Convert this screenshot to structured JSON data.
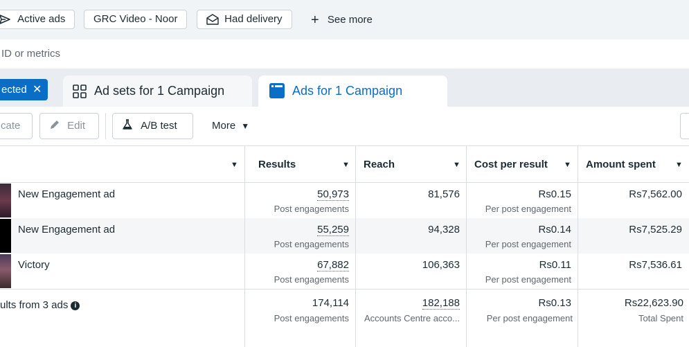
{
  "filters": {
    "chips": [
      {
        "label": "Active ads",
        "icon": "send-icon"
      },
      {
        "label": "GRC Video - Noor",
        "icon": ""
      },
      {
        "label": "Had delivery",
        "icon": "envelope-icon"
      }
    ],
    "see_more": "See more"
  },
  "search": {
    "placeholder": "ID or metrics"
  },
  "tabs": {
    "selected_chip": "ected",
    "ad_sets": "Ad sets for 1 Campaign",
    "ads": "Ads for 1 Campaign"
  },
  "toolbar": {
    "duplicate": "cate",
    "edit": "Edit",
    "ab_test": "A/B test",
    "more": "More"
  },
  "table": {
    "headers": {
      "results": "Results",
      "reach": "Reach",
      "cost_per_result": "Cost per result",
      "amount_spent": "Amount spent"
    },
    "rows": [
      {
        "name": "New Engagement ad",
        "results": "50,973",
        "results_sub": "Post engagements",
        "reach": "81,576",
        "cost": "Rs0.15",
        "cost_sub": "Per post engagement",
        "spent": "Rs7,562.00"
      },
      {
        "name": "New Engagement ad",
        "results": "55,259",
        "results_sub": "Post engagements",
        "reach": "94,328",
        "cost": "Rs0.14",
        "cost_sub": "Per post engagement",
        "spent": "Rs7,525.29"
      },
      {
        "name": "Victory",
        "results": "67,882",
        "results_sub": "Post engagements",
        "reach": "106,363",
        "cost": "Rs0.11",
        "cost_sub": "Per post engagement",
        "spent": "Rs7,536.61"
      }
    ],
    "summary": {
      "label": "ults from 3 ads",
      "results": "174,114",
      "results_sub": "Post engagements",
      "reach": "182,188",
      "reach_sub": "Accounts Centre acco...",
      "cost": "Rs0.13",
      "cost_sub": "Per post engagement",
      "spent": "Rs22,623.90",
      "spent_sub": "Total Spent"
    }
  },
  "colors": {
    "accent": "#0a6ec7",
    "text": "#1c2b33",
    "muted": "#606770"
  }
}
